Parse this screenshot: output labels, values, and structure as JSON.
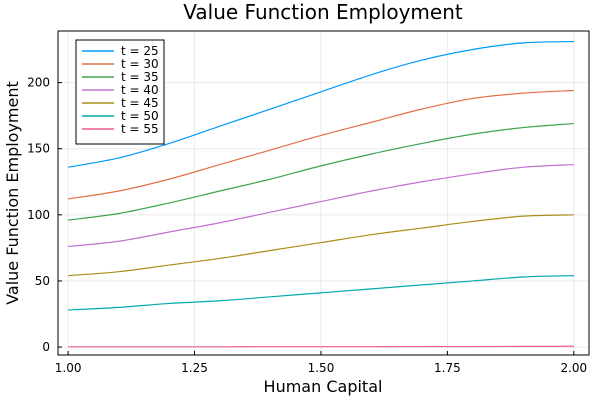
{
  "chart_data": {
    "type": "line",
    "title": "Value Function Employment",
    "xlabel": "Human Capital",
    "ylabel": "Value Function Employment",
    "xlim": [
      0.98,
      2.03
    ],
    "ylim": [
      -6,
      239
    ],
    "xticks": [
      1.0,
      1.25,
      1.5,
      1.75,
      2.0
    ],
    "xtick_labels": [
      "1.00",
      "1.25",
      "1.50",
      "1.75",
      "2.00"
    ],
    "yticks": [
      0,
      50,
      100,
      150,
      200
    ],
    "ytick_labels": [
      "0",
      "50",
      "100",
      "150",
      "200"
    ],
    "grid": true,
    "legend_position": "top-left",
    "series": [
      {
        "name": "t = 25",
        "color": "#009AFA",
        "x": [
          1.0,
          1.1,
          1.2,
          1.3,
          1.4,
          1.5,
          1.6,
          1.7,
          1.8,
          1.9,
          2.0
        ],
        "values": [
          136,
          143,
          154,
          167,
          180,
          193,
          206,
          217,
          225,
          230,
          231
        ]
      },
      {
        "name": "t = 30",
        "color": "#E36F47",
        "x": [
          1.0,
          1.1,
          1.2,
          1.3,
          1.4,
          1.5,
          1.6,
          1.7,
          1.8,
          1.9,
          2.0
        ],
        "values": [
          112,
          118,
          127,
          138,
          149,
          160,
          170,
          180,
          188,
          192,
          194
        ]
      },
      {
        "name": "t = 35",
        "color": "#3EA44E",
        "x": [
          1.0,
          1.1,
          1.2,
          1.3,
          1.4,
          1.5,
          1.6,
          1.7,
          1.8,
          1.9,
          2.0
        ],
        "values": [
          96,
          101,
          109,
          118,
          127,
          137,
          146,
          154,
          161,
          166,
          169
        ]
      },
      {
        "name": "t = 40",
        "color": "#C271D2",
        "x": [
          1.0,
          1.1,
          1.2,
          1.3,
          1.4,
          1.5,
          1.6,
          1.7,
          1.8,
          1.9,
          2.0
        ],
        "values": [
          76,
          80,
          87,
          94,
          102,
          110,
          118,
          125,
          131,
          136,
          138
        ]
      },
      {
        "name": "t = 45",
        "color": "#AC8D18",
        "x": [
          1.0,
          1.1,
          1.2,
          1.3,
          1.4,
          1.5,
          1.6,
          1.7,
          1.8,
          1.9,
          2.0
        ],
        "values": [
          54,
          57,
          62,
          67,
          73,
          79,
          85,
          90,
          95,
          99,
          100
        ]
      },
      {
        "name": "t = 50",
        "color": "#00A9AD",
        "x": [
          1.0,
          1.1,
          1.2,
          1.3,
          1.4,
          1.5,
          1.6,
          1.7,
          1.8,
          1.9,
          2.0
        ],
        "values": [
          28,
          30,
          33,
          35,
          38,
          41,
          44,
          47,
          50,
          53,
          54
        ]
      },
      {
        "name": "t = 55",
        "color": "#ED5D92",
        "x": [
          1.0,
          1.1,
          1.2,
          1.3,
          1.4,
          1.5,
          1.6,
          1.7,
          1.8,
          1.9,
          2.0
        ],
        "values": [
          0.2,
          0.2,
          0.2,
          0.2,
          0.3,
          0.3,
          0.3,
          0.4,
          0.4,
          0.5,
          0.6
        ]
      }
    ]
  }
}
